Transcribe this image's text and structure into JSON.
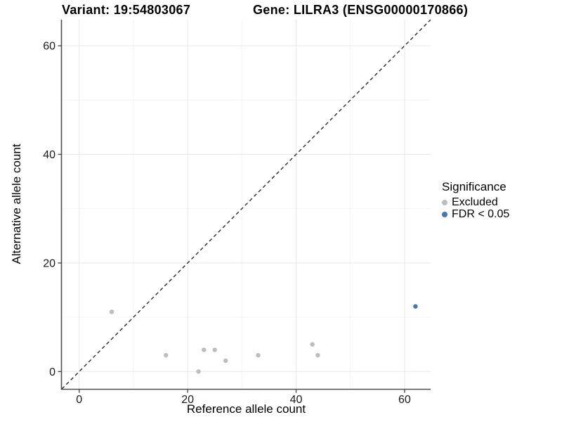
{
  "figure": {
    "title_left": "Variant: 19:54803067",
    "title_right": "Gene: LILRA3 (ENSG00000170866)"
  },
  "axes": {
    "x_title": "Reference allele count",
    "y_title": "Alternative allele count",
    "x_tick_labels": [
      "0",
      "20",
      "40",
      "60"
    ],
    "y_tick_labels": [
      "0",
      "20",
      "40",
      "60"
    ]
  },
  "legend": {
    "title": "Significance",
    "items": [
      {
        "label": "Excluded",
        "color": "#bdbdbd"
      },
      {
        "label": "FDR < 0.05",
        "color": "#4374b4"
      }
    ]
  },
  "chart_data": {
    "type": "scatter",
    "titles": [
      "Variant: 19:54803067",
      "Gene: LILRA3 (ENSG00000170866)"
    ],
    "xlabel": "Reference allele count",
    "ylabel": "Alternative allele count",
    "xlim": [
      -3.2,
      64.8
    ],
    "ylim": [
      -3.2,
      64.8
    ],
    "x_ticks": [
      0,
      20,
      40,
      60
    ],
    "y_ticks": [
      0,
      20,
      40,
      60
    ],
    "minor_gridlines": [
      10,
      30,
      50
    ],
    "grid": true,
    "legend_position": "right",
    "identity_line": {
      "style": "dashed",
      "slope": 1,
      "intercept": 0,
      "color": "#1a1a1a"
    },
    "series": [
      {
        "name": "Excluded",
        "color": "#bdbdbd",
        "points": [
          [
            6,
            11
          ],
          [
            16,
            3
          ],
          [
            22,
            0
          ],
          [
            23,
            4
          ],
          [
            25,
            4
          ],
          [
            27,
            2
          ],
          [
            33,
            3
          ],
          [
            43,
            5
          ],
          [
            44,
            3
          ]
        ]
      },
      {
        "name": "FDR < 0.05",
        "color": "#4374b4",
        "points": [
          [
            62,
            12
          ]
        ]
      }
    ]
  },
  "style": {
    "axis_line_color": "#4d4d4d",
    "major_grid_color": "#e8e8e8",
    "minor_grid_color": "#f4f4f4",
    "tick_label_color": "#1a1a1a",
    "point_radius": 3.2
  }
}
